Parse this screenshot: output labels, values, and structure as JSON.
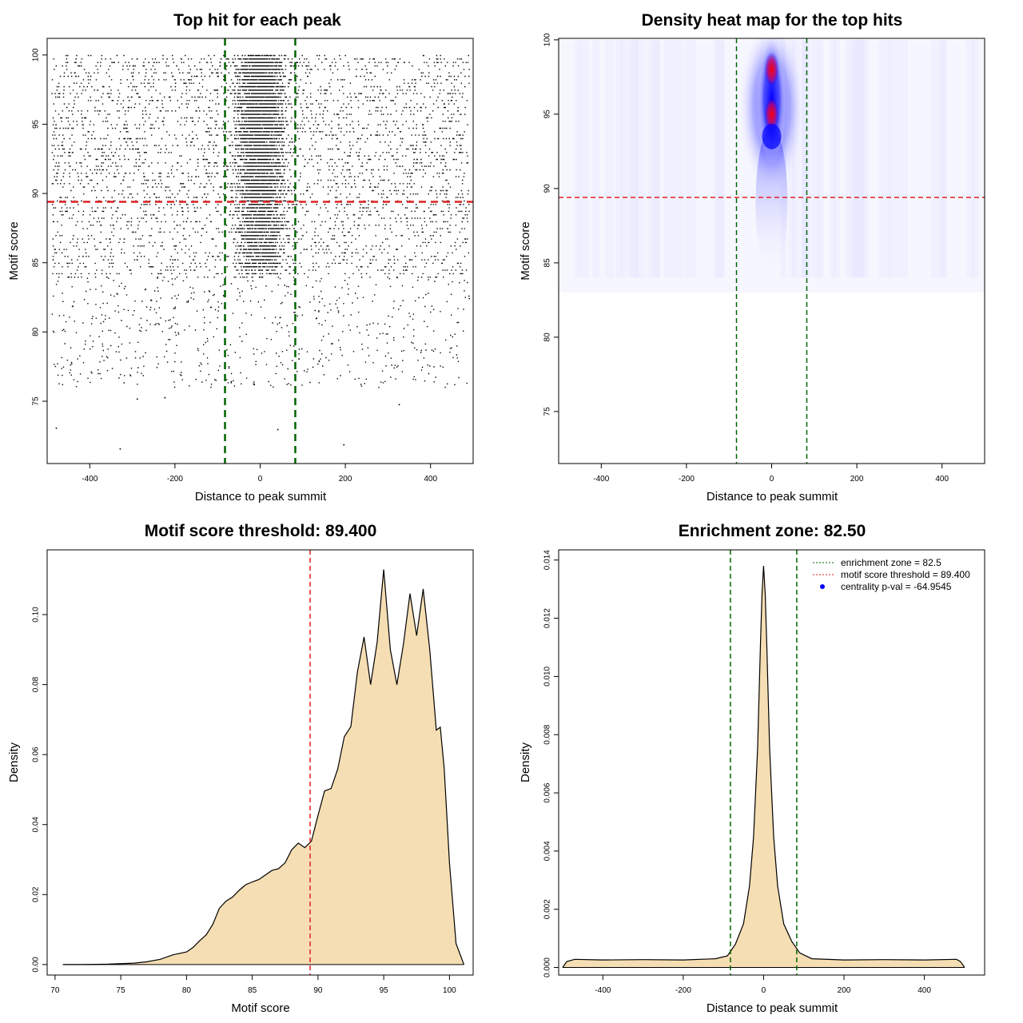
{
  "chart_data": [
    {
      "type": "scatter",
      "title": "Top hit for each peak",
      "xlabel": "Distance to peak summit",
      "ylabel": "Motif score",
      "xlim": [
        -500,
        500
      ],
      "ylim": [
        70.5,
        101.2
      ],
      "xticks": [
        -400,
        -200,
        0,
        200,
        400
      ],
      "yticks": [
        75,
        80,
        85,
        90,
        95,
        100
      ],
      "vlines": [
        -82.5,
        82.5
      ],
      "hline": 89.4,
      "vline_color": "#006400",
      "hline_color": "#dd2222",
      "point_color": "#000000",
      "description_points": "dense band of hits concentrated within ±100 of summit, scores 84–100; sparse background from -490 to 490",
      "outliers": [
        [
          -480,
          73.1
        ],
        [
          -330,
          71.6
        ],
        [
          195,
          71.9
        ],
        [
          -225,
          75.3
        ],
        [
          -290,
          75.2
        ],
        [
          325,
          74.8
        ],
        [
          40,
          73.0
        ]
      ]
    },
    {
      "type": "heatmap",
      "title": "Density heat map for the top hits",
      "xlabel": "Distance to peak summit",
      "ylabel": "Motif score",
      "xlim": [
        -500,
        500
      ],
      "ylim": [
        71.5,
        100.1
      ],
      "xticks": [
        -400,
        -200,
        0,
        200,
        400
      ],
      "yticks": [
        75,
        80,
        85,
        90,
        95,
        100
      ],
      "vlines": [
        -82.5,
        82.5
      ],
      "hline": 89.4,
      "hot_spots": [
        {
          "x": 0,
          "y": 98,
          "level": "high"
        },
        {
          "x": 0,
          "y": 95,
          "level": "high"
        },
        {
          "x": 0,
          "y": 93.5,
          "level": "medium"
        }
      ],
      "colors": [
        "#ffffff",
        "#0000ff",
        "#ff0000"
      ]
    },
    {
      "type": "area",
      "title": "Motif score threshold: 89.400",
      "xlabel": "Motif score",
      "ylabel": "Density",
      "xlim": [
        69.4,
        101.8
      ],
      "ylim": [
        -0.003,
        0.1185
      ],
      "xticks": [
        70,
        75,
        80,
        85,
        90,
        95,
        100
      ],
      "yticks": [
        0.0,
        0.02,
        0.04,
        0.06,
        0.08,
        0.1
      ],
      "ytick_labels": [
        "0.00",
        "0.02",
        "0.04",
        "0.06",
        "0.08",
        "0.10"
      ],
      "vline": 89.4,
      "vline_color": "#dd2222",
      "fill_color": "#f5deb3",
      "x": [
        70.6,
        72,
        74,
        76,
        77,
        78,
        79,
        80,
        80.5,
        81,
        81.5,
        82,
        82.5,
        83,
        83.5,
        84,
        84.5,
        85,
        85.5,
        86,
        86.5,
        87,
        87.5,
        88,
        88.5,
        89,
        89.5,
        90,
        90.5,
        91,
        91.5,
        92,
        92.5,
        93,
        93.5,
        94,
        94.5,
        95,
        95.5,
        96,
        96.5,
        97,
        97.5,
        98,
        98.5,
        99,
        99.3,
        99.6,
        100,
        100.5,
        101.1
      ],
      "y": [
        0,
        0,
        0.0001,
        0.0004,
        0.0008,
        0.0015,
        0.0028,
        0.0036,
        0.0049,
        0.0068,
        0.0085,
        0.0115,
        0.0161,
        0.0181,
        0.0193,
        0.0212,
        0.0228,
        0.0236,
        0.0243,
        0.0256,
        0.0269,
        0.0274,
        0.0291,
        0.0328,
        0.0347,
        0.0334,
        0.0353,
        0.0426,
        0.0496,
        0.0503,
        0.0559,
        0.0651,
        0.068,
        0.0836,
        0.0936,
        0.08,
        0.0921,
        0.1129,
        0.09,
        0.08,
        0.0916,
        0.106,
        0.094,
        0.1073,
        0.09,
        0.067,
        0.0678,
        0.056,
        0.029,
        0.006,
        0.0
      ]
    },
    {
      "type": "area",
      "title": "Enrichment zone: 82.50",
      "xlabel": "Distance to peak summit",
      "ylabel": "Density",
      "xlim": [
        -510,
        550
      ],
      "ylim": [
        -0.00026,
        0.01435
      ],
      "xticks": [
        -400,
        -200,
        0,
        200,
        400
      ],
      "yticks": [
        0.0,
        0.002,
        0.004,
        0.006,
        0.008,
        0.01,
        0.012,
        0.014
      ],
      "ytick_labels": [
        "0.000",
        "0.002",
        "0.004",
        "0.006",
        "0.008",
        "0.010",
        "0.012",
        "0.014"
      ],
      "vlines": [
        -82.5,
        82.5
      ],
      "vline_color": "#006400",
      "fill_color": "#f5deb3",
      "x": [
        -500,
        -490,
        -470,
        -400,
        -300,
        -200,
        -120,
        -90,
        -70,
        -50,
        -35,
        -25,
        -15,
        -8,
        -4,
        0,
        4,
        8,
        15,
        25,
        35,
        50,
        70,
        90,
        120,
        200,
        300,
        400,
        480,
        490,
        500
      ],
      "y": [
        0.0,
        0.0002,
        0.00028,
        0.00026,
        0.00027,
        0.00026,
        0.0003,
        0.0004,
        0.0008,
        0.0015,
        0.0028,
        0.0045,
        0.0075,
        0.011,
        0.0128,
        0.0138,
        0.0128,
        0.011,
        0.0075,
        0.0045,
        0.0028,
        0.0015,
        0.0009,
        0.0005,
        0.0003,
        0.00026,
        0.00027,
        0.00026,
        0.00028,
        0.0002,
        0.0
      ],
      "legend": [
        {
          "label": "enrichment zone = 82.5",
          "color": "#006400",
          "style": "dotted-line"
        },
        {
          "label": "motif score threshold = 89.400",
          "color": "#dd2222",
          "style": "dotted-line"
        },
        {
          "label": "centrality p-val = -64.9545",
          "color": "#0000ff",
          "style": "dot"
        }
      ]
    }
  ]
}
